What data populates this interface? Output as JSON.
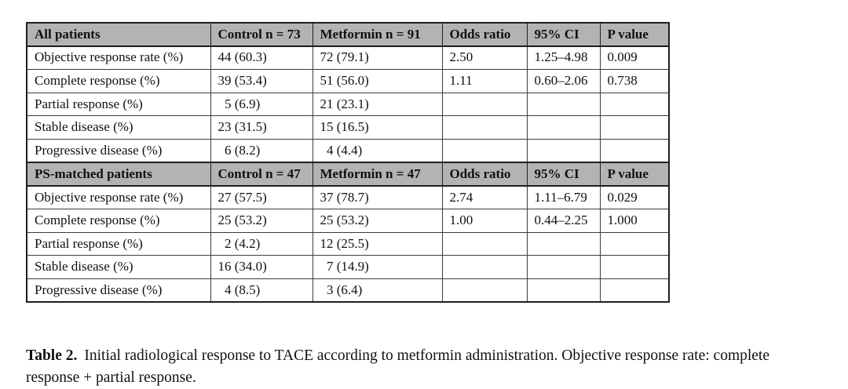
{
  "colors": {
    "header_bg": "#b3b3b3",
    "border": "#3c3c3c",
    "header_border": "#1e1e1e",
    "text": "#101010",
    "page_bg": "#ffffff"
  },
  "table": {
    "sections": [
      {
        "header": {
          "label": "All patients",
          "columns": [
            "Control n = 73",
            "Metformin n = 91",
            "Odds ratio",
            "95% CI",
            "P value"
          ]
        },
        "rows": [
          {
            "label": "Objective response rate (%)",
            "cells": [
              "44 (60.3)",
              "72 (79.1)",
              "2.50",
              "1.25–4.98",
              "0.009"
            ]
          },
          {
            "label": "Complete response (%)",
            "cells": [
              "39 (53.4)",
              "51 (56.0)",
              "1.11",
              "0.60–2.06",
              "0.738"
            ]
          },
          {
            "label": "Partial response (%)",
            "cells": [
              " 5 (6.9)",
              "21 (23.1)",
              "",
              "",
              ""
            ]
          },
          {
            "label": "Stable disease (%)",
            "cells": [
              "23 (31.5)",
              "15 (16.5)",
              "",
              "",
              ""
            ]
          },
          {
            "label": "Progressive disease (%)",
            "cells": [
              " 6 (8.2)",
              " 4 (4.4)",
              "",
              "",
              ""
            ]
          }
        ]
      },
      {
        "header": {
          "label": "PS-matched patients",
          "columns": [
            "Control n = 47",
            "Metformin n = 47",
            "Odds ratio",
            "95% CI",
            "P value"
          ]
        },
        "rows": [
          {
            "label": "Objective response rate (%)",
            "cells": [
              "27 (57.5)",
              "37 (78.7)",
              "2.74",
              "1.11–6.79",
              "0.029"
            ]
          },
          {
            "label": "Complete response (%)",
            "cells": [
              "25 (53.2)",
              "25 (53.2)",
              "1.00",
              "0.44–2.25",
              "1.000"
            ]
          },
          {
            "label": "Partial response (%)",
            "cells": [
              " 2 (4.2)",
              "12 (25.5)",
              "",
              "",
              ""
            ]
          },
          {
            "label": "Stable disease (%)",
            "cells": [
              "16 (34.0)",
              " 7 (14.9)",
              "",
              "",
              ""
            ]
          },
          {
            "label": "Progressive disease (%)",
            "cells": [
              " 4 (8.5)",
              " 3 (6.4)",
              "",
              "",
              ""
            ]
          }
        ]
      }
    ]
  },
  "caption": {
    "label": "Table 2.",
    "text": "Initial radiological response to TACE according to metformin administration. Objective response rate: complete response + partial response."
  }
}
